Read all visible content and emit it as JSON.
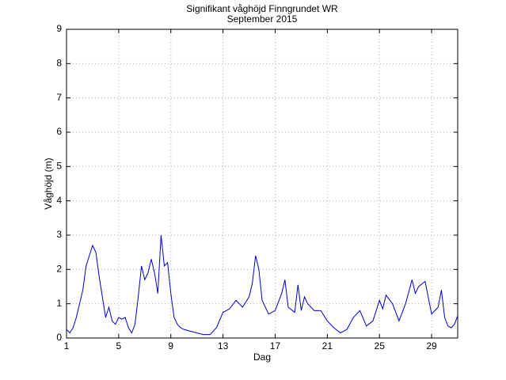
{
  "chart_data": {
    "type": "line",
    "title": "Signifikant våghöjd Finngrundet WR",
    "subtitle": "September 2015",
    "x_label": "Dag",
    "y_label": "Våghöjd (m)",
    "color": "#0000cc",
    "grid": true,
    "xlim": [
      1,
      31
    ],
    "ylim": [
      0,
      9
    ],
    "xticks": [
      1,
      5,
      9,
      13,
      17,
      21,
      25,
      29
    ],
    "yticks": [
      0,
      1,
      2,
      3,
      4,
      5,
      6,
      7,
      8,
      9
    ],
    "x": [
      1,
      1.25,
      1.5,
      1.75,
      2,
      2.25,
      2.5,
      2.75,
      3,
      3.25,
      3.5,
      3.75,
      4,
      4.25,
      4.5,
      4.75,
      5,
      5.25,
      5.5,
      5.75,
      6,
      6.25,
      6.5,
      6.75,
      7,
      7.25,
      7.5,
      7.75,
      8,
      8.25,
      8.5,
      8.75,
      9,
      9.25,
      9.5,
      9.75,
      10,
      10.5,
      11,
      11.5,
      12,
      12.5,
      13,
      13.5,
      14,
      14.5,
      15,
      15.25,
      15.5,
      15.75,
      16,
      16.5,
      17,
      17.5,
      17.75,
      18,
      18.5,
      18.75,
      19,
      19.25,
      19.5,
      20,
      20.5,
      21,
      21.5,
      22,
      22.5,
      23,
      23.5,
      24,
      24.5,
      25,
      25.25,
      25.5,
      26,
      26.5,
      27,
      27.5,
      27.75,
      28,
      28.5,
      29,
      29.5,
      29.75,
      30,
      30.25,
      30.5,
      30.75,
      31
    ],
    "values": [
      0.25,
      0.15,
      0.3,
      0.6,
      1.0,
      1.4,
      2.1,
      2.4,
      2.7,
      2.5,
      1.8,
      1.2,
      0.6,
      0.9,
      0.5,
      0.4,
      0.6,
      0.55,
      0.6,
      0.3,
      0.15,
      0.4,
      1.2,
      2.1,
      1.7,
      1.9,
      2.3,
      1.9,
      1.3,
      3.0,
      2.1,
      2.2,
      1.3,
      0.6,
      0.4,
      0.3,
      0.25,
      0.2,
      0.15,
      0.1,
      0.1,
      0.3,
      0.75,
      0.85,
      1.1,
      0.9,
      1.2,
      1.6,
      2.4,
      2.0,
      1.1,
      0.7,
      0.8,
      1.3,
      1.7,
      0.9,
      0.75,
      1.55,
      0.8,
      1.2,
      1.0,
      0.8,
      0.8,
      0.5,
      0.3,
      0.15,
      0.25,
      0.6,
      0.8,
      0.35,
      0.5,
      1.1,
      0.85,
      1.25,
      1.0,
      0.5,
      1.0,
      1.7,
      1.3,
      1.5,
      1.65,
      0.7,
      0.9,
      1.4,
      0.6,
      0.35,
      0.3,
      0.4,
      0.65
    ]
  }
}
